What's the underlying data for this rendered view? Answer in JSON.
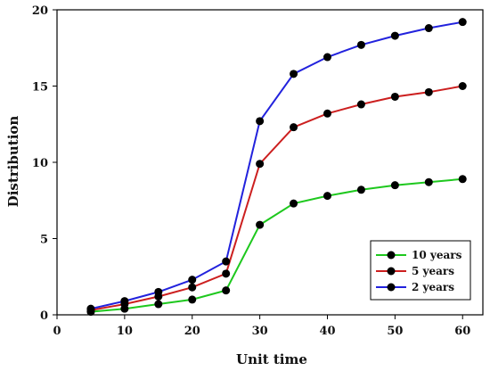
{
  "chart_data": {
    "type": "line",
    "xlabel": "Unit time",
    "ylabel": "Distribution",
    "xlim": [
      0,
      63
    ],
    "ylim": [
      0,
      20
    ],
    "xticks": [
      0,
      10,
      20,
      30,
      40,
      50,
      60
    ],
    "yticks": [
      0,
      5,
      10,
      15,
      20
    ],
    "grid": false,
    "legend_position": "bottom-right",
    "x": [
      5,
      10,
      15,
      20,
      25,
      30,
      35,
      40,
      45,
      50,
      55,
      60
    ],
    "series": [
      {
        "name": "10 years",
        "color": "#1ec81e",
        "values": [
          0.2,
          0.4,
          0.7,
          1.0,
          1.6,
          5.9,
          7.3,
          7.8,
          8.2,
          8.5,
          8.7,
          8.9
        ]
      },
      {
        "name": "5 years",
        "color": "#cc1f1f",
        "values": [
          0.3,
          0.7,
          1.2,
          1.8,
          2.7,
          9.9,
          12.3,
          13.2,
          13.8,
          14.3,
          14.6,
          15.0
        ]
      },
      {
        "name": "2 years",
        "color": "#2222dd",
        "values": [
          0.4,
          0.9,
          1.5,
          2.3,
          3.5,
          12.7,
          15.8,
          16.9,
          17.7,
          18.3,
          18.8,
          19.2
        ]
      }
    ]
  }
}
